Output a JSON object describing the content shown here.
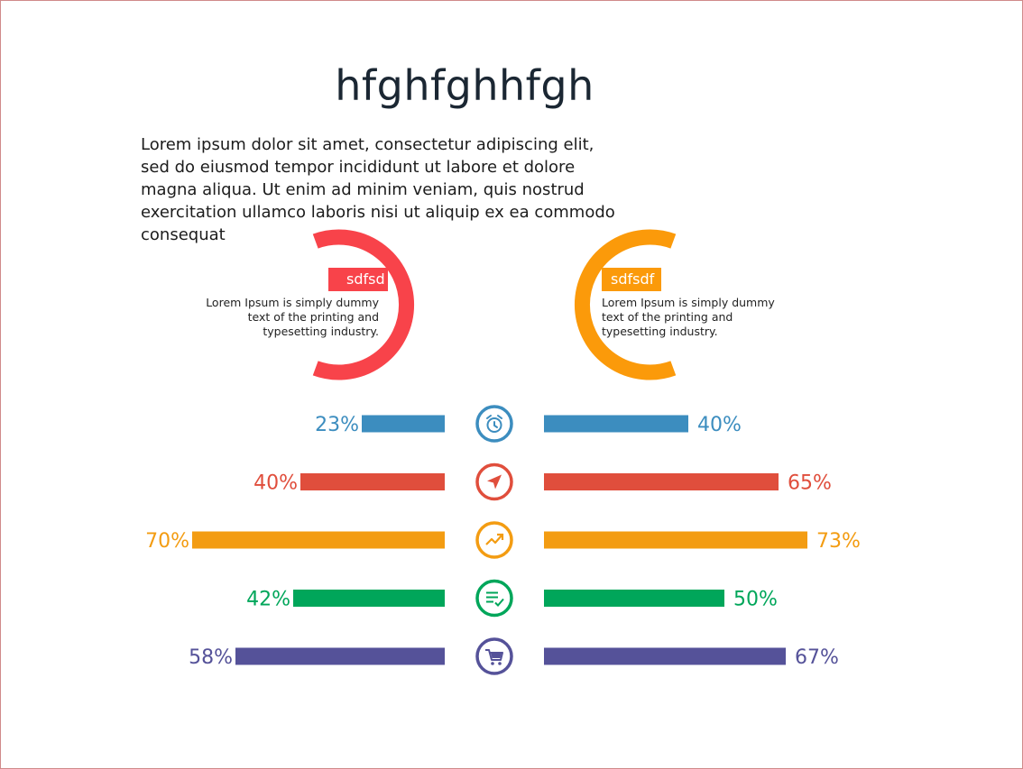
{
  "title": "hfghfghhfgh",
  "intro": "Lorem ipsum dolor sit amet, consectetur adipiscing elit, sed do eiusmod tempor incididunt ut labore et dolore magna aliqua. Ut enim ad minim veniam, quis nostrud exercitation ullamco laboris nisi ut aliquip ex ea commodo consequat",
  "rings": [
    {
      "label": "sdfsd",
      "color": "#f8434a",
      "text": "Lorem Ipsum is simply dummy text of the printing and typesetting industry."
    },
    {
      "label": "sdfsdf",
      "color": "#fb9a0a",
      "text": "Lorem Ipsum is simply dummy text of the printing and typesetting industry."
    }
  ],
  "chart_data": {
    "type": "bar",
    "orientation": "diverging-horizontal",
    "categories": [
      "timer",
      "navigation",
      "trending-up",
      "checklist",
      "shopping-cart"
    ],
    "icons": [
      "alarm-clock-icon",
      "navigation-arrow-icon",
      "trending-up-icon",
      "checklist-icon",
      "shopping-cart-icon"
    ],
    "colors": [
      "#3c8dbf",
      "#e04e3c",
      "#f39c12",
      "#00a65a",
      "#555299"
    ],
    "series": [
      {
        "side": "left",
        "values": [
          23,
          40,
          70,
          42,
          58
        ],
        "labels": [
          "23%",
          "40%",
          "70%",
          "42%",
          "58%"
        ]
      },
      {
        "side": "right",
        "values": [
          40,
          65,
          73,
          50,
          67
        ],
        "labels": [
          "40%",
          "65%",
          "73%",
          "50%",
          "67%"
        ]
      }
    ]
  }
}
